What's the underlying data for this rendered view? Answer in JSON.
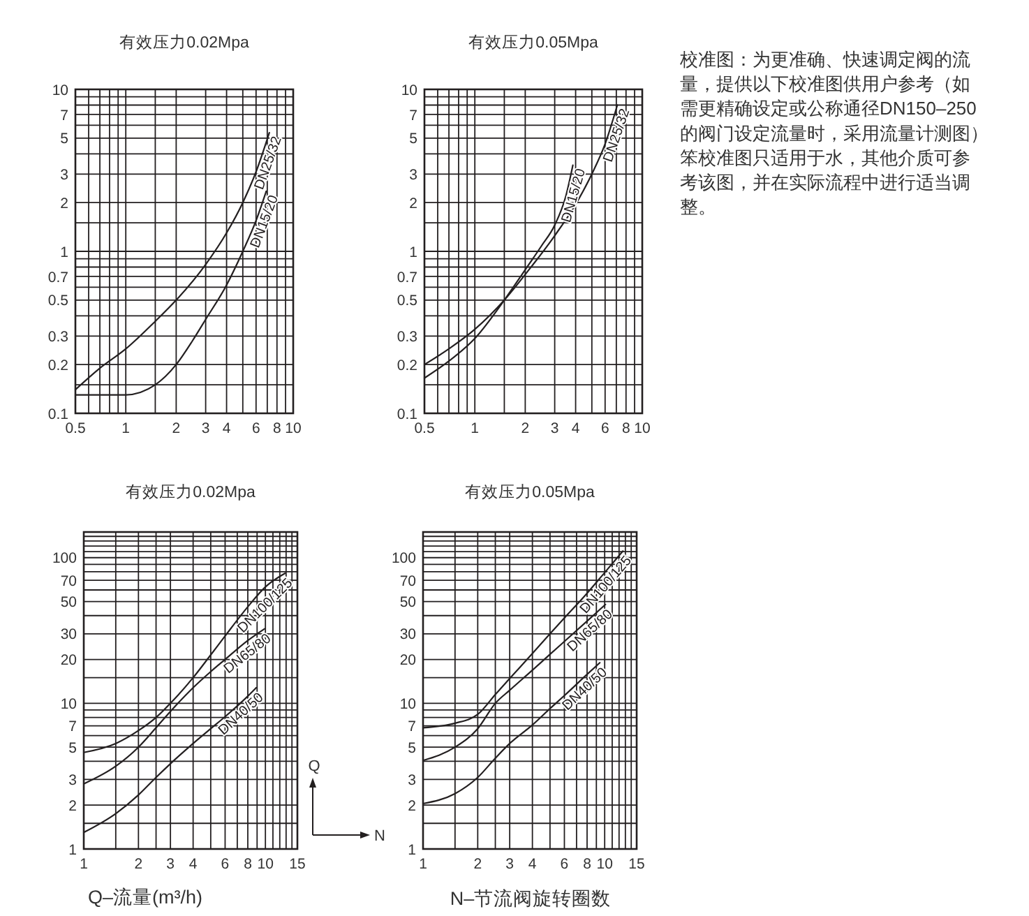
{
  "chart_data": [
    {
      "type": "line",
      "title": "有效压力0.02Mpa",
      "log": "xy",
      "xlim": [
        0.5,
        10
      ],
      "xticks": [
        0.5,
        {
          "value": 0.6,
          "label": null
        },
        {
          "value": 0.7,
          "label": null
        },
        {
          "value": 0.8,
          "label": null
        },
        {
          "value": 0.9,
          "label": null
        },
        1,
        {
          "value": 1.5,
          "label": null
        },
        2,
        3,
        4,
        {
          "value": 5,
          "label": null
        },
        6,
        {
          "value": 7,
          "label": null
        },
        8,
        {
          "value": 9,
          "label": null
        },
        10
      ],
      "ylim": [
        0.1,
        10
      ],
      "yticks": [
        0.1,
        {
          "value": 0.15,
          "label": null
        },
        0.2,
        0.3,
        {
          "value": 0.4,
          "label": null
        },
        0.5,
        {
          "value": 0.6,
          "label": null
        },
        0.7,
        {
          "value": 0.8,
          "label": null
        },
        {
          "value": 0.9,
          "label": null
        },
        1,
        {
          "value": 1.5,
          "label": null
        },
        2,
        3,
        {
          "value": 4,
          "label": null
        },
        5,
        {
          "value": 6,
          "label": null
        },
        7,
        {
          "value": 8,
          "label": null
        },
        {
          "value": 9,
          "label": null
        },
        10
      ],
      "grid": true,
      "series": [
        {
          "name": "DN25/32",
          "color": "#231f20",
          "x": [
            0.5,
            0.7,
            1,
            1.5,
            2,
            3,
            4,
            5,
            6,
            7.2
          ],
          "values": [
            0.14,
            0.19,
            0.25,
            0.37,
            0.5,
            0.83,
            1.3,
            2,
            3.1,
            5.4
          ]
        },
        {
          "name": "DN15/20",
          "color": "#231f20",
          "x": [
            0.5,
            0.7,
            1,
            1.5,
            2,
            2.5,
            3,
            4,
            5,
            6,
            6.9
          ],
          "values": [
            0.13,
            0.13,
            0.13,
            0.15,
            0.2,
            0.28,
            0.38,
            0.62,
            1,
            1.55,
            2.35
          ]
        }
      ]
    },
    {
      "type": "line",
      "title": "有效压力0.05Mpa",
      "log": "xy",
      "xlim": [
        0.5,
        10
      ],
      "xticks": [
        0.5,
        {
          "value": 0.6,
          "label": null
        },
        {
          "value": 0.7,
          "label": null
        },
        {
          "value": 0.8,
          "label": null
        },
        {
          "value": 0.9,
          "label": null
        },
        1,
        {
          "value": 1.5,
          "label": null
        },
        2,
        3,
        4,
        {
          "value": 5,
          "label": null
        },
        6,
        {
          "value": 7,
          "label": null
        },
        8,
        {
          "value": 9,
          "label": null
        },
        10
      ],
      "ylim": [
        0.1,
        10
      ],
      "yticks": [
        0.1,
        {
          "value": 0.15,
          "label": null
        },
        0.2,
        0.3,
        {
          "value": 0.4,
          "label": null
        },
        0.5,
        {
          "value": 0.6,
          "label": null
        },
        0.7,
        {
          "value": 0.8,
          "label": null
        },
        {
          "value": 0.9,
          "label": null
        },
        1,
        {
          "value": 1.5,
          "label": null
        },
        2,
        3,
        {
          "value": 4,
          "label": null
        },
        5,
        {
          "value": 6,
          "label": null
        },
        7,
        {
          "value": 8,
          "label": null
        },
        {
          "value": 9,
          "label": null
        },
        10
      ],
      "grid": true,
      "series": [
        {
          "name": "DN25/32",
          "color": "#231f20",
          "x": [
            0.5,
            0.7,
            1,
            1.5,
            2,
            3,
            4,
            5,
            6,
            7.1
          ],
          "values": [
            0.2,
            0.25,
            0.33,
            0.5,
            0.72,
            1.25,
            1.95,
            3,
            4.6,
            8
          ]
        },
        {
          "name": "DN15/20",
          "color": "#231f20",
          "x": [
            0.5,
            0.7,
            1,
            1.5,
            2,
            2.5,
            3,
            3.5,
            3.85
          ],
          "values": [
            0.165,
            0.21,
            0.29,
            0.5,
            0.77,
            1.08,
            1.45,
            2.2,
            3.4
          ]
        }
      ]
    },
    {
      "type": "line",
      "title": "有效压力0.02Mpa",
      "log": "xy",
      "xlim": [
        1,
        15
      ],
      "xticks": [
        1,
        {
          "value": 1.5,
          "label": null
        },
        2,
        {
          "value": 2.5,
          "label": null
        },
        3,
        4,
        {
          "value": 5,
          "label": null
        },
        6,
        {
          "value": 7,
          "label": null
        },
        8,
        {
          "value": 9,
          "label": null
        },
        10,
        {
          "value": 11,
          "label": null
        },
        {
          "value": 12,
          "label": null
        },
        {
          "value": 13,
          "label": null
        },
        {
          "value": 14,
          "label": null
        },
        15
      ],
      "ylim": [
        1,
        150
      ],
      "yticks": [
        1,
        {
          "value": 1.5,
          "label": null
        },
        2,
        3,
        {
          "value": 4,
          "label": null
        },
        5,
        {
          "value": 6,
          "label": null
        },
        7,
        {
          "value": 8,
          "label": null
        },
        {
          "value": 9,
          "label": null
        },
        10,
        {
          "value": 15,
          "label": null
        },
        20,
        30,
        {
          "value": 40,
          "label": null
        },
        50,
        {
          "value": 60,
          "label": null
        },
        70,
        {
          "value": 80,
          "label": null
        },
        {
          "value": 90,
          "label": null
        },
        100,
        {
          "value": 110,
          "label": null
        },
        {
          "value": 120,
          "label": null
        },
        {
          "value": 130,
          "label": null
        },
        {
          "value": 140,
          "label": null
        }
      ],
      "grid": true,
      "series": [
        {
          "name": "DN100/125",
          "color": "#231f20",
          "x": [
            1,
            1.5,
            2,
            2.5,
            3,
            4,
            5,
            6,
            8,
            10,
            12.8
          ],
          "values": [
            4.6,
            5.3,
            6.5,
            8,
            10,
            15,
            21.5,
            29,
            46,
            63,
            78
          ]
        },
        {
          "name": "DN65/80",
          "color": "#231f20",
          "x": [
            1,
            1.5,
            2,
            2.5,
            3,
            4,
            5,
            6,
            8,
            9.9
          ],
          "values": [
            2.8,
            3.7,
            5,
            6.8,
            8.8,
            12.8,
            16.5,
            20,
            27,
            32.5
          ]
        },
        {
          "name": "DN40/50",
          "color": "#231f20",
          "x": [
            1,
            1.5,
            2,
            2.5,
            3,
            4,
            5,
            6,
            8,
            8.9
          ],
          "values": [
            1.3,
            1.75,
            2.35,
            3.1,
            3.85,
            5.3,
            6.7,
            8.1,
            11.2,
            12.8
          ]
        }
      ],
      "annotations": [
        "Q",
        "N",
        "Q–流量(m³/h)"
      ]
    },
    {
      "type": "line",
      "title": "有效压力0.05Mpa",
      "log": "xy",
      "xlim": [
        1,
        15
      ],
      "xticks": [
        1,
        {
          "value": 1.5,
          "label": null
        },
        2,
        {
          "value": 2.5,
          "label": null
        },
        3,
        4,
        {
          "value": 5,
          "label": null
        },
        6,
        {
          "value": 7,
          "label": null
        },
        8,
        {
          "value": 9,
          "label": null
        },
        10,
        {
          "value": 11,
          "label": null
        },
        {
          "value": 12,
          "label": null
        },
        {
          "value": 13,
          "label": null
        },
        {
          "value": 14,
          "label": null
        },
        15
      ],
      "ylim": [
        1,
        150
      ],
      "yticks": [
        1,
        {
          "value": 1.5,
          "label": null
        },
        2,
        3,
        {
          "value": 4,
          "label": null
        },
        5,
        {
          "value": 6,
          "label": null
        },
        7,
        {
          "value": 8,
          "label": null
        },
        {
          "value": 9,
          "label": null
        },
        10,
        {
          "value": 15,
          "label": null
        },
        20,
        30,
        {
          "value": 40,
          "label": null
        },
        50,
        {
          "value": 60,
          "label": null
        },
        70,
        {
          "value": 80,
          "label": null
        },
        {
          "value": 90,
          "label": null
        },
        100,
        {
          "value": 110,
          "label": null
        },
        {
          "value": 120,
          "label": null
        },
        {
          "value": 130,
          "label": null
        },
        {
          "value": 140,
          "label": null
        }
      ],
      "grid": true,
      "series": [
        {
          "name": "DN100/125",
          "color": "#231f20",
          "x": [
            1,
            1.5,
            2,
            2.5,
            3,
            4,
            5,
            6,
            8,
            10,
            12.6
          ],
          "values": [
            6.8,
            7.3,
            8.4,
            11.5,
            14.8,
            22,
            30,
            38.5,
            57,
            79,
            111
          ]
        },
        {
          "name": "DN65/80",
          "color": "#231f20",
          "x": [
            1,
            1.5,
            2,
            2.5,
            3,
            4,
            5,
            6,
            8,
            10.1
          ],
          "values": [
            4.05,
            5,
            6.7,
            10,
            12.3,
            16.9,
            21.7,
            26.6,
            36.7,
            47.7
          ]
        },
        {
          "name": "DN40/50",
          "color": "#231f20",
          "x": [
            1,
            1.5,
            2,
            2.5,
            3,
            4,
            5,
            6,
            8,
            9.4
          ],
          "values": [
            2.05,
            2.4,
            3.1,
            4.2,
            5.3,
            7.1,
            9.2,
            11.3,
            15.8,
            19
          ]
        }
      ],
      "annotations": [
        "N–节流阀旋转圈数"
      ]
    },
    {
      "type": "other",
      "annotations": [
        "校准图：为更准确、快速调定阀的流量，提供以下校准图供用户参考（如需更精确设定或公称通径DN150–250的阀门设定流量时，采用流量计测图）笨校准图只适用于水，其他介质可参考该图，并在实际流程中进行适当调整。"
      ]
    }
  ]
}
